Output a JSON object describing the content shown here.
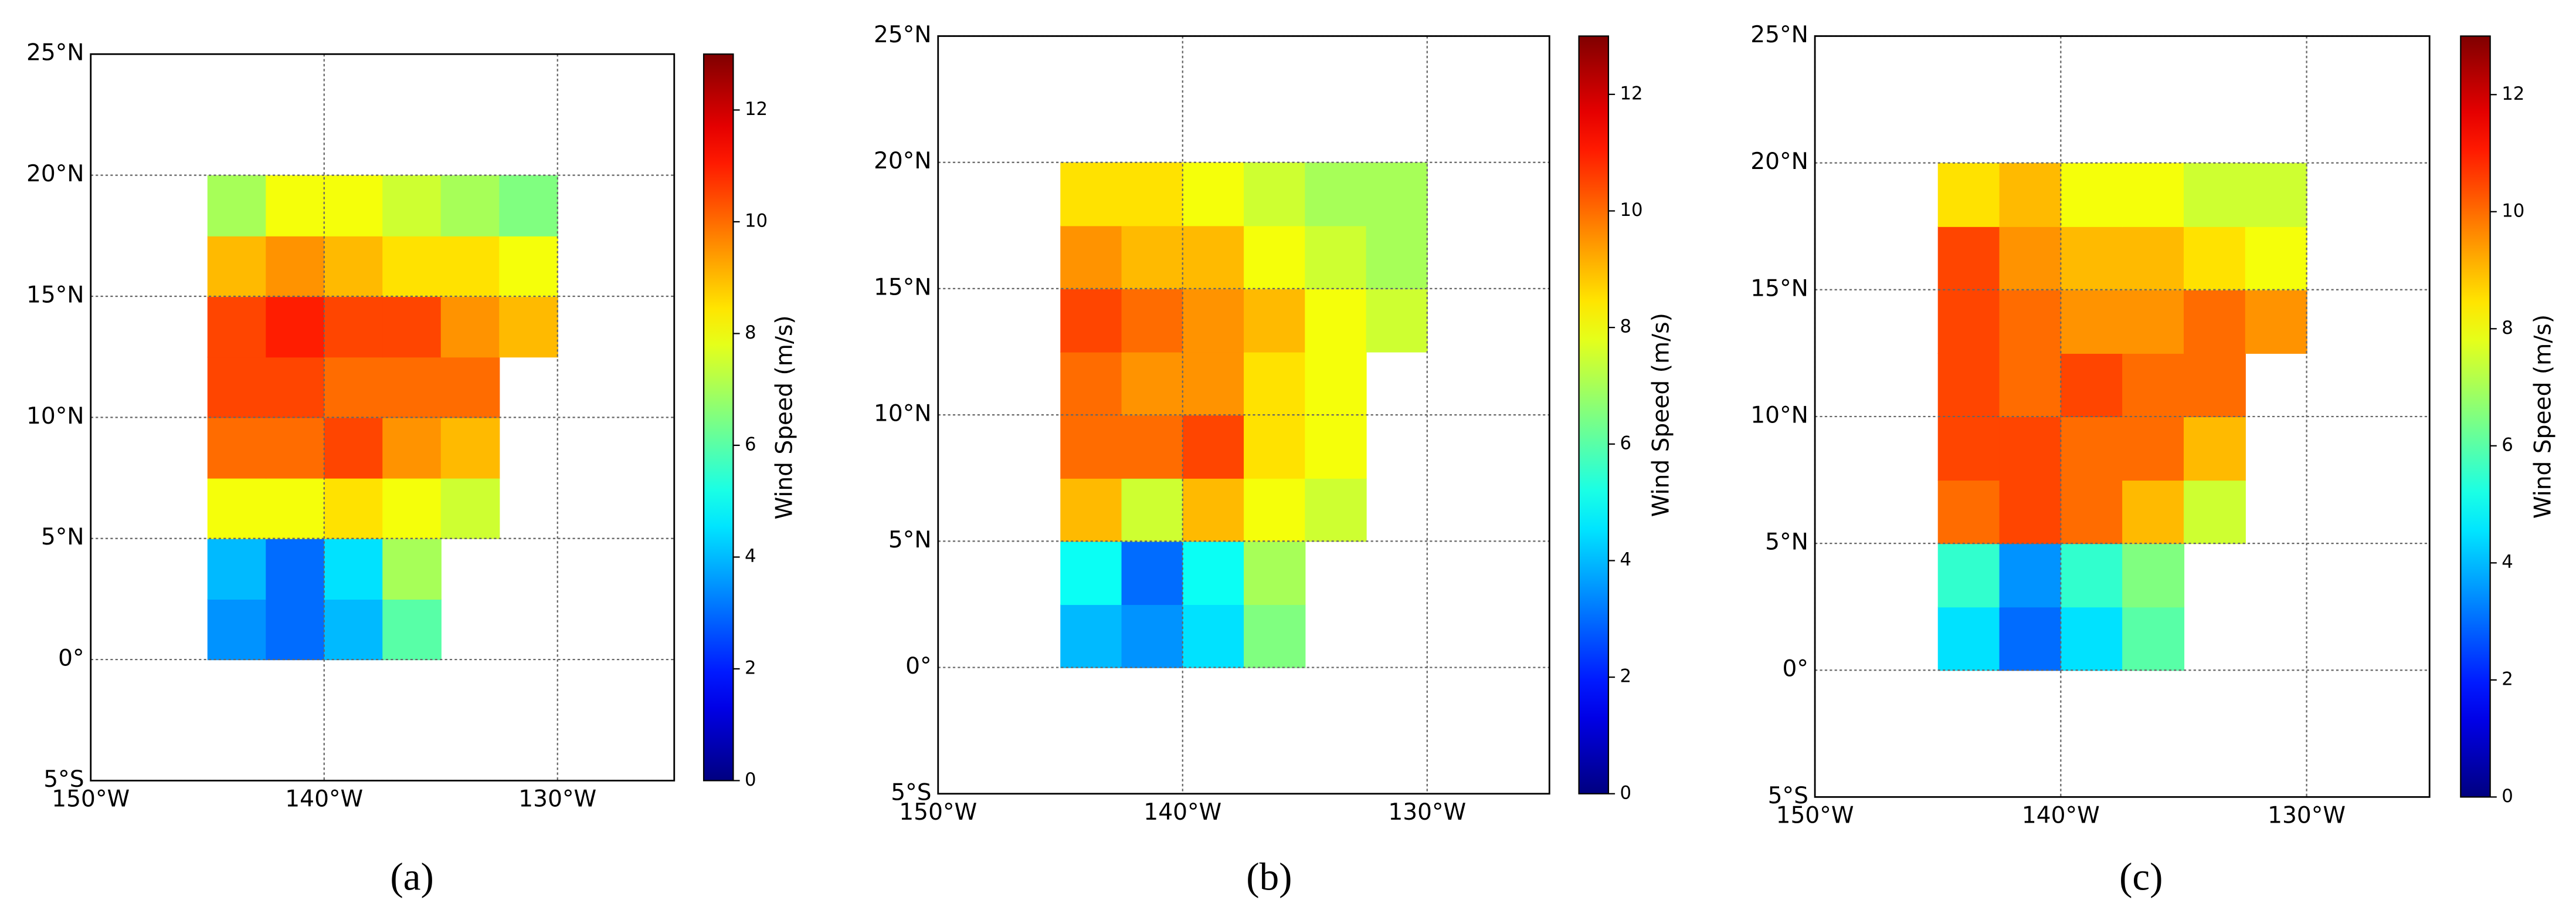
{
  "chart_data": [
    {
      "type": "heatmap",
      "caption": "(a)",
      "colormap": "jet",
      "grid": true,
      "xlim": [
        -150,
        -125
      ],
      "ylim": [
        -5,
        25
      ],
      "xticks": [
        {
          "value": -150,
          "label": "150°W"
        },
        {
          "value": -140,
          "label": "140°W"
        },
        {
          "value": -130,
          "label": "130°W"
        }
      ],
      "yticks": [
        {
          "value": -5,
          "label": "5°S"
        },
        {
          "value": 0,
          "label": "0°"
        },
        {
          "value": 5,
          "label": "5°N"
        },
        {
          "value": 10,
          "label": "10°N"
        },
        {
          "value": 15,
          "label": "15°N"
        },
        {
          "value": 20,
          "label": "20°N"
        },
        {
          "value": 25,
          "label": "25°N"
        }
      ],
      "colorbar_label": "Wind Speed (m/s)",
      "clim": [
        0,
        13
      ],
      "cticks": [
        0,
        2,
        4,
        6,
        8,
        10,
        12
      ],
      "lons": [
        -143.75,
        -141.25,
        -138.75,
        -136.25,
        -133.75,
        -131.25
      ],
      "lats": [
        1.25,
        3.75,
        6.25,
        8.75,
        11.25,
        13.75,
        16.25,
        18.75
      ],
      "values": [
        [
          3.5,
          3,
          4,
          6,
          null,
          null
        ],
        [
          4,
          3,
          4.5,
          7,
          null,
          null
        ],
        [
          8,
          8,
          8.5,
          8,
          7.5,
          null
        ],
        [
          10,
          10,
          10.5,
          9.5,
          9,
          null
        ],
        [
          10.5,
          10.5,
          10,
          10,
          10,
          null
        ],
        [
          10.5,
          11,
          10.5,
          10.5,
          9.5,
          9
        ],
        [
          9,
          9.5,
          9,
          8.5,
          8.5,
          8
        ],
        [
          7,
          8,
          8,
          7.5,
          7,
          6.5
        ]
      ]
    },
    {
      "type": "heatmap",
      "caption": "(b)",
      "colormap": "jet",
      "grid": true,
      "xlim": [
        -150,
        -125
      ],
      "ylim": [
        -5,
        25
      ],
      "xticks": [
        {
          "value": -150,
          "label": "150°W"
        },
        {
          "value": -140,
          "label": "140°W"
        },
        {
          "value": -130,
          "label": "130°W"
        }
      ],
      "yticks": [
        {
          "value": -5,
          "label": "5°S"
        },
        {
          "value": 0,
          "label": "0°"
        },
        {
          "value": 5,
          "label": "5°N"
        },
        {
          "value": 10,
          "label": "10°N"
        },
        {
          "value": 15,
          "label": "15°N"
        },
        {
          "value": 20,
          "label": "20°N"
        },
        {
          "value": 25,
          "label": "25°N"
        }
      ],
      "colorbar_label": "Wind Speed (m/s)",
      "clim": [
        0,
        13
      ],
      "cticks": [
        0,
        2,
        4,
        6,
        8,
        10,
        12
      ],
      "lons": [
        -143.75,
        -141.25,
        -138.75,
        -136.25,
        -133.75,
        -131.25
      ],
      "lats": [
        1.25,
        3.75,
        6.25,
        8.75,
        11.25,
        13.75,
        16.25,
        18.75
      ],
      "values": [
        [
          4,
          3.5,
          4.5,
          6.5,
          null,
          null
        ],
        [
          5,
          3,
          5,
          7,
          null,
          null
        ],
        [
          9,
          7.5,
          9,
          8,
          7.5,
          null
        ],
        [
          10,
          10,
          10.5,
          8.5,
          8,
          null
        ],
        [
          10,
          9.5,
          9.5,
          8.5,
          8,
          null
        ],
        [
          10.5,
          10,
          9.5,
          9,
          8,
          7.5
        ],
        [
          9.5,
          9,
          9,
          8,
          7.5,
          7
        ],
        [
          8.5,
          8.5,
          8,
          7.5,
          7,
          7
        ]
      ]
    },
    {
      "type": "heatmap",
      "caption": "(c)",
      "colormap": "jet",
      "grid": true,
      "xlim": [
        -150,
        -125
      ],
      "ylim": [
        -5,
        25
      ],
      "xticks": [
        {
          "value": -150,
          "label": "150°W"
        },
        {
          "value": -140,
          "label": "140°W"
        },
        {
          "value": -130,
          "label": "130°W"
        }
      ],
      "yticks": [
        {
          "value": -5,
          "label": "5°S"
        },
        {
          "value": 0,
          "label": "0°"
        },
        {
          "value": 5,
          "label": "5°N"
        },
        {
          "value": 10,
          "label": "10°N"
        },
        {
          "value": 15,
          "label": "15°N"
        },
        {
          "value": 20,
          "label": "20°N"
        },
        {
          "value": 25,
          "label": "25°N"
        }
      ],
      "colorbar_label": "Wind Speed (m/s)",
      "clim": [
        0,
        13
      ],
      "cticks": [
        0,
        2,
        4,
        6,
        8,
        10,
        12
      ],
      "lons": [
        -143.75,
        -141.25,
        -138.75,
        -136.25,
        -133.75,
        -131.25
      ],
      "lats": [
        1.25,
        3.75,
        6.25,
        8.75,
        11.25,
        13.75,
        16.25,
        18.75
      ],
      "values": [
        [
          4.5,
          3,
          4.5,
          6,
          null,
          null
        ],
        [
          5.5,
          3.5,
          5.5,
          6.5,
          null,
          null
        ],
        [
          10,
          10.5,
          10,
          9,
          7.5,
          null
        ],
        [
          10.5,
          10.5,
          10,
          10,
          9,
          null
        ],
        [
          10.5,
          10,
          10.5,
          10,
          10,
          null
        ],
        [
          10.5,
          10,
          9.5,
          9.5,
          10,
          9.5
        ],
        [
          10.5,
          9.5,
          9,
          9,
          8.5,
          8
        ],
        [
          8.5,
          9,
          8,
          8,
          7.5,
          7.5
        ]
      ]
    }
  ]
}
